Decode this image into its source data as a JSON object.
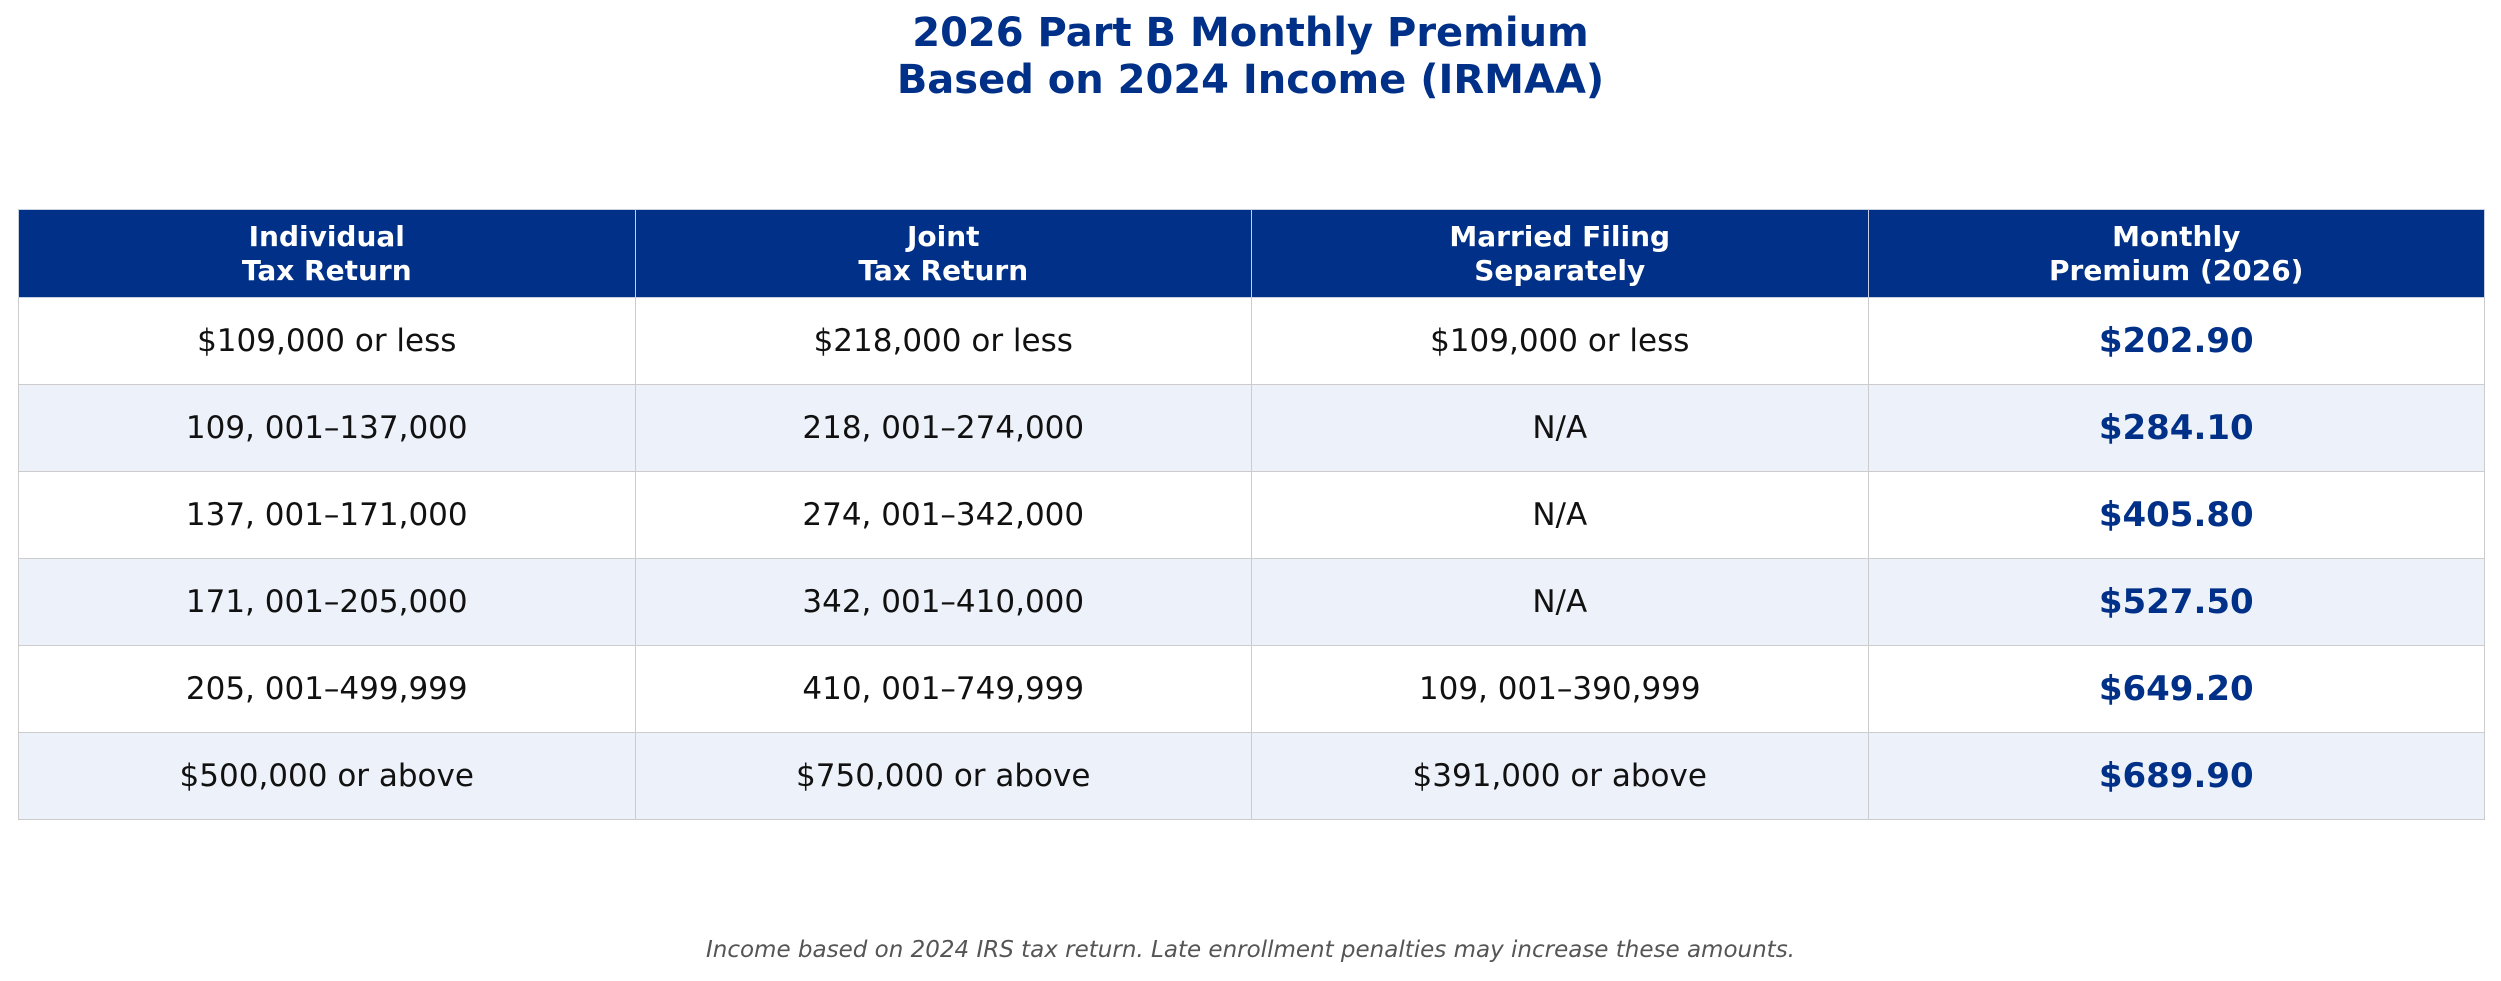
{
  "title": {
    "line1": "2026 Part B Monthly Premium",
    "line2": "Based on 2024 Income (IRMAA)"
  },
  "table": {
    "headers": [
      {
        "line1": "Individual",
        "line2": "Tax Return"
      },
      {
        "line1": "Joint",
        "line2": "Tax Return"
      },
      {
        "line1": "Married Filing",
        "line2": "Separately"
      },
      {
        "line1": "Monthly",
        "line2": "Premium (2026)"
      }
    ],
    "rows": [
      {
        "individual": "$109,000 or less",
        "joint": "$218,000 or less",
        "separately": "$109,000 or less",
        "premium": "$202.90"
      },
      {
        "individual": "109, 001–137,000",
        "joint": "218, 001–274,000",
        "separately": "N/A",
        "premium": "$284.10"
      },
      {
        "individual": "137, 001–171,000",
        "joint": "274, 001–342,000",
        "separately": "N/A",
        "premium": "$405.80"
      },
      {
        "individual": "171, 001–205,000",
        "joint": "342, 001–410,000",
        "separately": "N/A",
        "premium": "$527.50"
      },
      {
        "individual": "205, 001–499,999",
        "joint": "410, 001–749,999",
        "separately": "109, 001–390,999",
        "premium": "$649.20"
      },
      {
        "individual": "$500,000 or above",
        "joint": "$750,000 or above",
        "separately": "$391,000 or above",
        "premium": "$689.90"
      }
    ]
  },
  "footnote": "Income based on 2024 IRS tax return. Late enrollment penalties may increase these amounts.",
  "colors": {
    "accent": "#003087",
    "header_text": "#ffffff",
    "stripe": "#edf1f9",
    "border": "#cccccc",
    "footnote": "#555555"
  }
}
